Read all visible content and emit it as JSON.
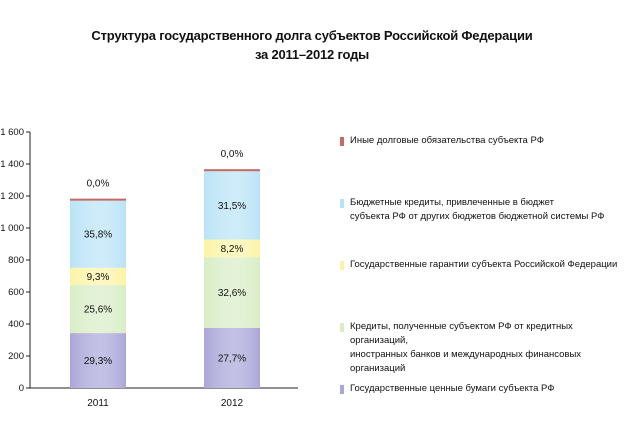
{
  "title": {
    "line1": "Структура государственного долга субъектов Российской Федерации",
    "line2": "за 2011–2012 годы"
  },
  "chart_data": {
    "type": "stacked-bar",
    "title": "Структура государственного долга субъектов Российской Федерации за 2011–2012 годы",
    "categories": [
      "2011",
      "2012"
    ],
    "totals": [
      1171,
      1355
    ],
    "ylim": [
      0,
      1600
    ],
    "yticks": [
      0,
      200,
      400,
      600,
      800,
      1000,
      1200,
      1400,
      1600
    ],
    "ytick_labels": [
      "0",
      "200",
      "400",
      "600",
      "800",
      "1 000",
      "1 200",
      "1 400",
      "1 600"
    ],
    "legend_position": "right",
    "series": [
      {
        "name": "Государственные ценные бумаги субъекта РФ",
        "color": "#a9a6d8",
        "percents": [
          29.3,
          27.7
        ],
        "labels": [
          "29,3%",
          "27,7%"
        ]
      },
      {
        "name": "Кредиты, полученные субъектом РФ от кредитных организаций,\nиностранных банков и международных финансовых организаций",
        "color": "#d8edc6",
        "percents": [
          25.6,
          32.6
        ],
        "labels": [
          "25,6%",
          "32,6%"
        ]
      },
      {
        "name": "Государственные гарантии субъекта Российской Федерации",
        "color": "#fbf4a6",
        "percents": [
          9.3,
          8.2
        ],
        "labels": [
          "9,3%",
          "8,2%"
        ]
      },
      {
        "name": "Бюджетные кредиты, привлеченные в бюджет\nсубъекта РФ от других бюджетов бюджетной системы РФ",
        "color": "#b9e3f6",
        "percents": [
          35.8,
          31.5
        ],
        "labels": [
          "35,8%",
          "31,5%"
        ]
      },
      {
        "name": "Иные долговые обязательства субъекта РФ",
        "color": "#c46a62",
        "percents": [
          0.0,
          0.0
        ],
        "labels": [
          "0,0%",
          "0,0%"
        ]
      }
    ]
  }
}
